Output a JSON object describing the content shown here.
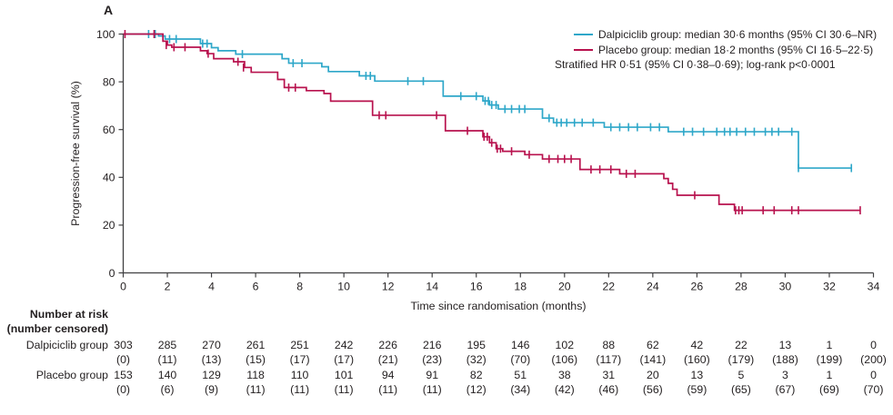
{
  "panel_label": "A",
  "colors": {
    "dalpiciclib": "#2EA7C9",
    "placebo": "#B8124E",
    "axis": "#404042",
    "text": "#231F20"
  },
  "legend": {
    "entries": [
      {
        "series": "dalpiciclib",
        "label": "Dalpiciclib group: median 30·6 months (95% CI 30·6–NR)"
      },
      {
        "series": "placebo",
        "label": "Placebo group: median 18·2 months (95% CI 16·5–22·5)"
      }
    ],
    "note": "Stratified HR 0·51 (95% CI 0·38–0·69); log-rank p<0·0001"
  },
  "chart_data": {
    "type": "line",
    "subtype": "kaplan_meier_step",
    "title": "",
    "xlabel": "Time since randomisation (months)",
    "ylabel": "Progression-free survival (%)",
    "xlim": [
      0,
      34
    ],
    "ylim": [
      0,
      100
    ],
    "xticks": [
      0,
      2,
      4,
      6,
      8,
      10,
      12,
      14,
      16,
      18,
      20,
      22,
      24,
      26,
      28,
      30,
      32,
      34
    ],
    "yticks": [
      0,
      20,
      40,
      60,
      80,
      100
    ],
    "grid": false,
    "legend_position": "top-right",
    "series": [
      {
        "key": "dalpiciclib",
        "name": "Dalpiciclib group",
        "color": "#2EA7C9",
        "median_months": "30·6",
        "median_ci": "30·6–NR",
        "start": [
          0,
          100
        ],
        "steps": [
          [
            1.6,
            99.2
          ],
          [
            1.9,
            97.9
          ],
          [
            3.5,
            96.0
          ],
          [
            4.0,
            94.3
          ],
          [
            4.3,
            93.0
          ],
          [
            5.1,
            91.6
          ],
          [
            7.2,
            89.7
          ],
          [
            7.5,
            87.8
          ],
          [
            9.0,
            86.3
          ],
          [
            9.3,
            84.3
          ],
          [
            10.7,
            82.5
          ],
          [
            11.4,
            80.3
          ],
          [
            14.5,
            74.0
          ],
          [
            16.3,
            72.0
          ],
          [
            16.6,
            70.3
          ],
          [
            17.0,
            68.6
          ],
          [
            19.0,
            64.8
          ],
          [
            19.5,
            62.9
          ],
          [
            21.8,
            61.0
          ],
          [
            24.7,
            59.1
          ],
          [
            30.6,
            43.9
          ]
        ],
        "end": 33.0,
        "censors": [
          [
            1.15,
            100
          ],
          [
            1.45,
            100
          ],
          [
            2.1,
            97.9
          ],
          [
            2.4,
            97.9
          ],
          [
            3.6,
            96
          ],
          [
            3.8,
            96
          ],
          [
            5.4,
            91.6
          ],
          [
            7.7,
            87.8
          ],
          [
            8.1,
            87.8
          ],
          [
            11.0,
            82.5
          ],
          [
            11.2,
            82.5
          ],
          [
            12.9,
            80.3
          ],
          [
            13.6,
            80.3
          ],
          [
            15.3,
            74
          ],
          [
            16.0,
            74
          ],
          [
            16.4,
            72
          ],
          [
            16.55,
            72
          ],
          [
            16.7,
            70.3
          ],
          [
            16.9,
            70.3
          ],
          [
            17.3,
            68.6
          ],
          [
            17.6,
            68.6
          ],
          [
            17.95,
            68.6
          ],
          [
            18.2,
            68.6
          ],
          [
            19.3,
            64.8
          ],
          [
            19.65,
            62.9
          ],
          [
            19.85,
            62.9
          ],
          [
            20.1,
            62.9
          ],
          [
            20.45,
            62.9
          ],
          [
            20.8,
            62.9
          ],
          [
            21.3,
            62.9
          ],
          [
            22.1,
            61
          ],
          [
            22.5,
            61
          ],
          [
            22.9,
            61
          ],
          [
            23.3,
            61
          ],
          [
            23.9,
            61
          ],
          [
            24.3,
            61
          ],
          [
            25.4,
            59.1
          ],
          [
            25.8,
            59.1
          ],
          [
            26.3,
            59.1
          ],
          [
            26.9,
            59.1
          ],
          [
            27.25,
            59.1
          ],
          [
            27.5,
            59.1
          ],
          [
            27.8,
            59.1
          ],
          [
            28.2,
            59.1
          ],
          [
            28.6,
            59.1
          ],
          [
            29.1,
            59.1
          ],
          [
            29.4,
            59.1
          ],
          [
            29.7,
            59.1
          ],
          [
            30.3,
            59.1
          ],
          [
            30.6,
            43.9
          ],
          [
            33.0,
            43.9
          ]
        ]
      },
      {
        "key": "placebo",
        "name": "Placebo group",
        "color": "#B8124E",
        "median_months": "18·2",
        "median_ci": "16·5–22·5",
        "start": [
          0,
          100
        ],
        "steps": [
          [
            1.8,
            97.0
          ],
          [
            2.0,
            95.4
          ],
          [
            2.2,
            94.5
          ],
          [
            3.5,
            93.0
          ],
          [
            3.8,
            91.8
          ],
          [
            4.1,
            89.7
          ],
          [
            5.0,
            88.4
          ],
          [
            5.5,
            86.0
          ],
          [
            5.8,
            84.0
          ],
          [
            7.0,
            81.0
          ],
          [
            7.3,
            77.6
          ],
          [
            8.3,
            76.3
          ],
          [
            9.1,
            75.1
          ],
          [
            9.4,
            71.9
          ],
          [
            11.3,
            66.0
          ],
          [
            14.6,
            59.5
          ],
          [
            16.3,
            57.0
          ],
          [
            16.6,
            54.5
          ],
          [
            16.9,
            52.0
          ],
          [
            17.2,
            50.9
          ],
          [
            18.2,
            49.5
          ],
          [
            19.0,
            47.7
          ],
          [
            20.7,
            43.3
          ],
          [
            22.5,
            41.5
          ],
          [
            24.5,
            39.5
          ],
          [
            24.7,
            37.5
          ],
          [
            24.9,
            35.0
          ],
          [
            25.1,
            32.5
          ],
          [
            27.0,
            28.7
          ],
          [
            27.7,
            26.2
          ]
        ],
        "end": 33.4,
        "censors": [
          [
            0.08,
            100
          ],
          [
            1.4,
            100
          ],
          [
            1.95,
            95.4
          ],
          [
            2.3,
            94.5
          ],
          [
            2.8,
            94.5
          ],
          [
            3.85,
            91.8
          ],
          [
            5.2,
            88.4
          ],
          [
            5.45,
            86.0
          ],
          [
            7.5,
            77.6
          ],
          [
            7.8,
            77.6
          ],
          [
            11.6,
            66
          ],
          [
            11.9,
            66
          ],
          [
            14.2,
            66
          ],
          [
            15.6,
            59.5
          ],
          [
            16.35,
            57
          ],
          [
            16.5,
            57
          ],
          [
            16.7,
            54.5
          ],
          [
            16.95,
            52
          ],
          [
            17.1,
            52
          ],
          [
            17.6,
            50.9
          ],
          [
            18.4,
            49.5
          ],
          [
            19.3,
            47.7
          ],
          [
            19.7,
            47.7
          ],
          [
            20.0,
            47.7
          ],
          [
            20.3,
            47.7
          ],
          [
            21.2,
            43.3
          ],
          [
            21.6,
            43.3
          ],
          [
            22.1,
            43.3
          ],
          [
            22.8,
            41.5
          ],
          [
            23.2,
            41.5
          ],
          [
            25.9,
            32.5
          ],
          [
            27.75,
            26.2
          ],
          [
            27.9,
            26.2
          ],
          [
            28.05,
            26.2
          ],
          [
            29.0,
            26.2
          ],
          [
            29.5,
            26.2
          ],
          [
            30.3,
            26.2
          ],
          [
            30.6,
            26.2
          ],
          [
            33.4,
            26.2
          ]
        ]
      }
    ]
  },
  "risk_table": {
    "header_line1": "Number at risk",
    "header_line2": "(number censored)",
    "time_points": [
      0,
      2,
      4,
      6,
      8,
      10,
      12,
      14,
      16,
      18,
      20,
      22,
      24,
      26,
      28,
      30,
      32,
      34
    ],
    "rows": [
      {
        "label": "Dalpiciclib group",
        "at_risk": [
          303,
          285,
          270,
          261,
          251,
          242,
          226,
          216,
          195,
          146,
          102,
          88,
          62,
          42,
          22,
          13,
          1,
          0
        ],
        "censored": [
          0,
          11,
          13,
          15,
          17,
          17,
          21,
          23,
          32,
          70,
          106,
          117,
          141,
          160,
          179,
          188,
          199,
          200
        ]
      },
      {
        "label": "Placebo group",
        "at_risk": [
          153,
          140,
          129,
          118,
          110,
          101,
          94,
          91,
          82,
          51,
          38,
          31,
          20,
          13,
          5,
          3,
          1,
          0
        ],
        "censored": [
          0,
          6,
          9,
          11,
          11,
          11,
          11,
          11,
          12,
          34,
          42,
          46,
          56,
          59,
          65,
          67,
          69,
          70
        ]
      }
    ]
  }
}
